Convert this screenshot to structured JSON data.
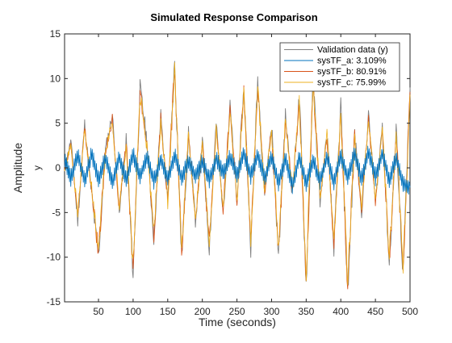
{
  "chart_data": {
    "type": "line",
    "title": "Simulated Response Comparison",
    "xlabel": "Time (seconds)",
    "ylabel": "Amplitude",
    "output_label": "y",
    "xlim": [
      1,
      500
    ],
    "ylim": [
      -15,
      15
    ],
    "xticks": [
      50,
      100,
      150,
      200,
      250,
      300,
      350,
      400,
      450,
      500
    ],
    "yticks": [
      -15,
      -10,
      -5,
      0,
      5,
      10,
      15
    ],
    "grid": false,
    "legend_position": "top-right",
    "series": [
      {
        "name": "Validation data (y)",
        "color": "#808080",
        "role": "reference",
        "x": [
          1,
          10,
          20,
          30,
          40,
          50,
          60,
          70,
          80,
          90,
          100,
          110,
          120,
          130,
          140,
          150,
          160,
          170,
          180,
          190,
          200,
          210,
          220,
          230,
          240,
          250,
          260,
          270,
          280,
          290,
          300,
          310,
          320,
          330,
          340,
          350,
          360,
          370,
          380,
          390,
          400,
          410,
          420,
          430,
          440,
          450,
          460,
          470,
          480,
          490,
          500
        ],
        "values": [
          0,
          3,
          -6,
          5,
          -3,
          -10,
          2,
          6,
          -5,
          3,
          -12,
          9,
          3,
          -8,
          6,
          -4,
          12,
          -10,
          4,
          -6,
          3,
          -9,
          5,
          -5,
          7,
          -4,
          9,
          -9,
          10,
          -3,
          5,
          -10,
          6,
          -3,
          8,
          -13,
          10,
          -4,
          4,
          -9,
          7,
          -14,
          4,
          -5,
          6,
          -4,
          5,
          -11,
          4,
          -12,
          9
        ]
      },
      {
        "name": "sysTF_a: 3.109%",
        "color": "#0072BD",
        "role": "flat",
        "x": [
          1,
          10,
          20,
          30,
          40,
          50,
          60,
          70,
          80,
          90,
          100,
          110,
          120,
          130,
          140,
          150,
          160,
          170,
          180,
          190,
          200,
          210,
          220,
          230,
          240,
          250,
          260,
          270,
          280,
          290,
          300,
          310,
          320,
          330,
          340,
          350,
          360,
          370,
          380,
          390,
          400,
          410,
          420,
          430,
          440,
          450,
          460,
          470,
          480,
          490,
          500
        ],
        "values": [
          0.8,
          -1.2,
          1.4,
          -1.5,
          1.6,
          -1.3,
          1.1,
          -1.6,
          1.2,
          -1.4,
          1.5,
          -1.0,
          1.3,
          -1.5,
          0.9,
          -1.2,
          1.4,
          -1.1,
          0.8,
          -1.0,
          0.7,
          -1.3,
          1.0,
          -0.6,
          1.2,
          -0.8,
          1.6,
          -0.9,
          1.5,
          -1.2,
          1.3,
          -1.8,
          1.0,
          -2.0,
          1.2,
          -1.7,
          0.9,
          -1.5,
          1.3,
          -1.6,
          1.4,
          -1.2,
          1.7,
          -1.3,
          1.8,
          -1.1,
          1.6,
          -1.5,
          1.2,
          -1.8,
          -2.2
        ]
      },
      {
        "name": "sysTF_b: 80.91%",
        "color": "#D95319",
        "role": "fit",
        "x": [
          1,
          10,
          20,
          30,
          40,
          50,
          60,
          70,
          80,
          90,
          100,
          110,
          120,
          130,
          140,
          150,
          160,
          170,
          180,
          190,
          200,
          210,
          220,
          230,
          240,
          250,
          260,
          270,
          280,
          290,
          300,
          310,
          320,
          330,
          340,
          350,
          360,
          370,
          380,
          390,
          400,
          410,
          420,
          430,
          440,
          450,
          460,
          470,
          480,
          490,
          500
        ],
        "values": [
          0,
          2.6,
          -5.5,
          4.6,
          -2.7,
          -9.5,
          1.8,
          5.5,
          -4.6,
          2.8,
          -11.4,
          8.5,
          2.7,
          -7.6,
          5.6,
          -3.7,
          11.4,
          -9.5,
          3.7,
          -5.6,
          2.8,
          -8.5,
          4.6,
          -4.7,
          6.6,
          -3.7,
          8.5,
          -8.6,
          9.5,
          -2.8,
          4.6,
          -9.4,
          5.6,
          -2.8,
          7.5,
          -12.3,
          9.4,
          -3.7,
          3.8,
          -8.5,
          6.5,
          -13.3,
          3.7,
          -4.6,
          5.6,
          -3.8,
          4.6,
          -10.4,
          3.7,
          -11.4,
          8.5
        ]
      },
      {
        "name": "sysTF_c: 75.99%",
        "color": "#EDB120",
        "role": "fit",
        "x": [
          1,
          10,
          20,
          30,
          40,
          50,
          60,
          70,
          80,
          90,
          100,
          110,
          120,
          130,
          140,
          150,
          160,
          170,
          180,
          190,
          200,
          210,
          220,
          230,
          240,
          250,
          260,
          270,
          280,
          290,
          300,
          310,
          320,
          330,
          340,
          350,
          360,
          370,
          380,
          390,
          400,
          410,
          420,
          430,
          440,
          450,
          460,
          470,
          480,
          490,
          500
        ],
        "values": [
          0,
          2.5,
          -5.2,
          4.4,
          -2.5,
          -9.2,
          1.7,
          5.3,
          -4.4,
          2.6,
          -11.0,
          8.2,
          2.5,
          -7.3,
          5.4,
          -3.5,
          11.0,
          -9.2,
          3.5,
          -5.4,
          2.6,
          -8.2,
          4.4,
          -4.5,
          6.3,
          -3.5,
          8.2,
          -8.3,
          9.2,
          -2.6,
          4.4,
          -9.1,
          5.4,
          -2.6,
          7.2,
          -11.9,
          9.1,
          -3.5,
          3.6,
          -8.2,
          6.2,
          -12.9,
          3.5,
          -4.4,
          5.4,
          -3.6,
          4.4,
          -10.0,
          3.5,
          -11.0,
          8.2
        ]
      }
    ]
  }
}
